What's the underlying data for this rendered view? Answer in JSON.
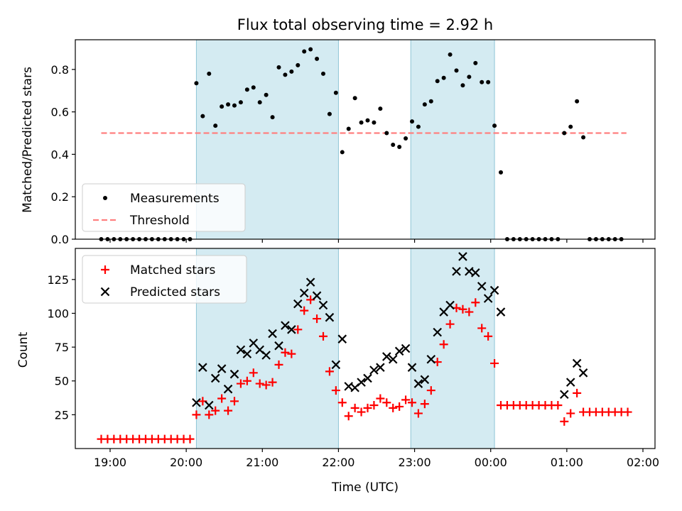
{
  "chart_data": [
    {
      "type": "scatter",
      "title": "Flux total observing time = 2.92 h",
      "xlabel": "",
      "ylabel": "Matched/Predicted stars",
      "ylim": [
        0,
        0.94
      ],
      "yticks": [
        "0.0",
        "0.2",
        "0.4",
        "0.6",
        "0.8"
      ],
      "legend": {
        "position": "lower-left",
        "entries": [
          "Measurements",
          "Threshold"
        ]
      },
      "threshold": {
        "name": "Threshold",
        "value": 0.5,
        "x_range": [
          "18:53",
          "01:47"
        ],
        "color": "#ff7f7f",
        "style": "dashed"
      },
      "shaded_intervals": [
        [
          "20:08",
          "22:00"
        ],
        [
          "22:57",
          "00:03"
        ]
      ],
      "series": [
        {
          "name": "Measurements",
          "marker": "dot",
          "color": "#000000",
          "x": [
            "18:53",
            "18:58",
            "19:03",
            "19:08",
            "19:13",
            "19:18",
            "19:23",
            "19:28",
            "19:33",
            "19:38",
            "19:43",
            "19:48",
            "19:53",
            "19:58",
            "20:03",
            "20:08",
            "20:13",
            "20:18",
            "20:23",
            "20:28",
            "20:33",
            "20:38",
            "20:43",
            "20:48",
            "20:53",
            "20:58",
            "21:03",
            "21:08",
            "21:13",
            "21:18",
            "21:23",
            "21:28",
            "21:33",
            "21:38",
            "21:43",
            "21:48",
            "21:53",
            "21:58",
            "22:03",
            "22:08",
            "22:13",
            "22:18",
            "22:23",
            "22:28",
            "22:33",
            "22:38",
            "22:43",
            "22:48",
            "22:53",
            "22:58",
            "23:03",
            "23:08",
            "23:13",
            "23:18",
            "23:23",
            "23:28",
            "23:33",
            "23:38",
            "23:43",
            "23:48",
            "23:53",
            "23:58",
            "00:03",
            "00:08",
            "00:13",
            "00:18",
            "00:23",
            "00:28",
            "00:33",
            "00:38",
            "00:43",
            "00:48",
            "00:53",
            "00:58",
            "01:03",
            "01:08",
            "01:13",
            "01:18",
            "01:23",
            "01:28",
            "01:33",
            "01:38",
            "01:43"
          ],
          "y": [
            0,
            0,
            0,
            0,
            0,
            0,
            0,
            0,
            0,
            0,
            0,
            0,
            0,
            0,
            0,
            0.735,
            0.58,
            0.78,
            0.535,
            0.625,
            0.635,
            0.63,
            0.645,
            0.705,
            0.715,
            0.645,
            0.68,
            0.575,
            0.81,
            0.775,
            0.79,
            0.82,
            0.885,
            0.895,
            0.85,
            0.78,
            0.59,
            0.69,
            0.41,
            0.52,
            0.665,
            0.55,
            0.56,
            0.55,
            0.615,
            0.5,
            0.445,
            0.435,
            0.475,
            0.555,
            0.53,
            0.635,
            0.65,
            0.745,
            0.76,
            0.87,
            0.795,
            0.725,
            0.765,
            0.83,
            0.74,
            0.74,
            0.535,
            0.315,
            0,
            0,
            0,
            0,
            0,
            0,
            0,
            0,
            0,
            0.5,
            0.53,
            0.65,
            0.48,
            0,
            0,
            0,
            0,
            0,
            0
          ]
        }
      ]
    },
    {
      "type": "scatter",
      "title": "",
      "xlabel": "Time (UTC)",
      "ylabel": "Count",
      "ylim": [
        0,
        148
      ],
      "yticks": [
        "25",
        "50",
        "75",
        "100",
        "125"
      ],
      "xticks": [
        "19:00",
        "20:00",
        "21:00",
        "22:00",
        "23:00",
        "00:00",
        "01:00",
        "02:00"
      ],
      "legend": {
        "position": "upper-left",
        "entries": [
          "Matched stars",
          "Predicted stars"
        ]
      },
      "shaded_intervals": [
        [
          "20:08",
          "22:00"
        ],
        [
          "22:57",
          "00:03"
        ]
      ],
      "series": [
        {
          "name": "Matched stars",
          "marker": "plus",
          "color": "#ff0000",
          "x": [
            "18:53",
            "18:58",
            "19:03",
            "19:08",
            "19:13",
            "19:18",
            "19:23",
            "19:28",
            "19:33",
            "19:38",
            "19:43",
            "19:48",
            "19:53",
            "19:58",
            "20:03",
            "20:08",
            "20:13",
            "20:18",
            "20:23",
            "20:28",
            "20:33",
            "20:38",
            "20:43",
            "20:48",
            "20:53",
            "20:58",
            "21:03",
            "21:08",
            "21:13",
            "21:18",
            "21:23",
            "21:28",
            "21:33",
            "21:38",
            "21:43",
            "21:48",
            "21:53",
            "21:58",
            "22:03",
            "22:08",
            "22:13",
            "22:18",
            "22:23",
            "22:28",
            "22:33",
            "22:38",
            "22:43",
            "22:48",
            "22:53",
            "22:58",
            "23:03",
            "23:08",
            "23:13",
            "23:18",
            "23:23",
            "23:28",
            "23:33",
            "23:38",
            "23:43",
            "23:48",
            "23:53",
            "23:58",
            "00:03",
            "00:08",
            "00:13",
            "00:18",
            "00:23",
            "00:28",
            "00:33",
            "00:38",
            "00:43",
            "00:48",
            "00:53",
            "00:58",
            "01:03",
            "01:08",
            "01:13",
            "01:18",
            "01:23",
            "01:28",
            "01:33",
            "01:38",
            "01:43",
            "01:48"
          ],
          "y": [
            7,
            7,
            7,
            7,
            7,
            7,
            7,
            7,
            7,
            7,
            7,
            7,
            7,
            7,
            7,
            25,
            35,
            25,
            28,
            37,
            28,
            35,
            48,
            50,
            56,
            48,
            47,
            49,
            62,
            71,
            70,
            88,
            102,
            110,
            96,
            83,
            57,
            43,
            34,
            24,
            30,
            27,
            30,
            32,
            37,
            34,
            30,
            31,
            36,
            34,
            26,
            33,
            43,
            64,
            77,
            92,
            104,
            103,
            101,
            108,
            89,
            83,
            63,
            32,
            32,
            32,
            32,
            32,
            32,
            32,
            32,
            32,
            32,
            20,
            26,
            41,
            27,
            27,
            27,
            27,
            27,
            27,
            27,
            27
          ]
        },
        {
          "name": "Predicted stars",
          "marker": "x",
          "color": "#000000",
          "x": [
            "20:08",
            "20:13",
            "20:18",
            "20:23",
            "20:28",
            "20:33",
            "20:38",
            "20:43",
            "20:48",
            "20:53",
            "20:58",
            "21:03",
            "21:08",
            "21:13",
            "21:18",
            "21:23",
            "21:28",
            "21:33",
            "21:38",
            "21:43",
            "21:48",
            "21:53",
            "21:58",
            "22:03",
            "22:08",
            "22:13",
            "22:18",
            "22:23",
            "22:28",
            "22:33",
            "22:38",
            "22:43",
            "22:48",
            "22:53",
            "22:58",
            "23:03",
            "23:08",
            "23:13",
            "23:18",
            "23:23",
            "23:28",
            "23:33",
            "23:38",
            "23:43",
            "23:48",
            "23:53",
            "23:58",
            "00:03",
            "00:08",
            "00:58",
            "01:03",
            "01:08",
            "01:13"
          ],
          "y": [
            34,
            60,
            32,
            52,
            59,
            44,
            55,
            73,
            70,
            78,
            73,
            69,
            85,
            76,
            91,
            88,
            107,
            115,
            123,
            113,
            106,
            97,
            62,
            81,
            46,
            45,
            49,
            52,
            58,
            60,
            68,
            66,
            72,
            74,
            60,
            48,
            51,
            66,
            86,
            101,
            106,
            131,
            142,
            131,
            130,
            120,
            111,
            117,
            101,
            40,
            49,
            63,
            56
          ]
        }
      ]
    }
  ]
}
